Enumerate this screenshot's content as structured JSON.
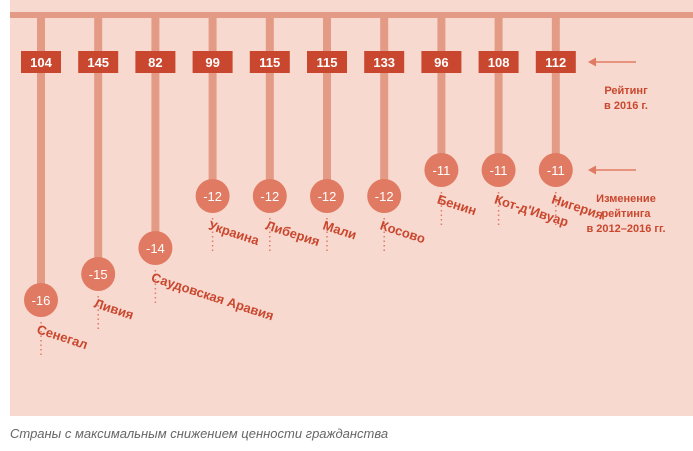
{
  "colors": {
    "background": "#f8d9cf",
    "accent": "#c9472e",
    "stem": "#e49b85",
    "circle": "#e07a62",
    "label": "#c9472e"
  },
  "chart_data": {
    "type": "dot-stem",
    "categories": [
      "Сенегал",
      "Ливия",
      "Саудовская Аравия",
      "Украина",
      "Либерия",
      "Мали",
      "Косово",
      "Бенин",
      "Кот-д'Ивуар",
      "Нигерия"
    ],
    "series": [
      {
        "name": "Рейтинг в 2016 г.",
        "values": [
          104,
          145,
          82,
          99,
          115,
          115,
          133,
          96,
          108,
          112
        ]
      },
      {
        "name": "Изменение рейтинга в 2012–2016 гг.",
        "values": [
          -16,
          -15,
          -14,
          -12,
          -12,
          -12,
          -12,
          -11,
          -11,
          -11
        ]
      }
    ],
    "legend": [
      {
        "line1": "Рейтинг",
        "line2": "в 2016 г."
      },
      {
        "line1": "Изменение",
        "line2": "рейтинга",
        "line3": "в 2012–2016 гг."
      }
    ]
  },
  "caption": "Страны с максимальным снижением ценности гражданства"
}
